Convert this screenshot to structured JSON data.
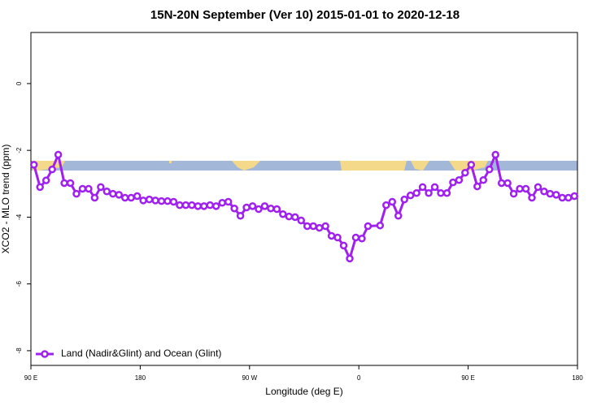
{
  "chart_data": {
    "type": "line",
    "title": "15N-20N September (Ver 10)   2015-01-01 to 2020-12-18",
    "x_label": "Longitude (deg E)",
    "y_label": "XCO2 - MLO trend (ppm)",
    "xlim": [
      90,
      540
    ],
    "ylim": [
      -8.44,
      1.53
    ],
    "xticks": [
      {
        "value": 90,
        "label": "90 E"
      },
      180,
      {
        "value": 270,
        "label": "90 W"
      },
      {
        "value": 360,
        "label": "0"
      },
      {
        "value": 450,
        "label": "90 E"
      },
      {
        "value": 540,
        "label": "180"
      }
    ],
    "yticks": [
      -8,
      -6,
      -4,
      -2,
      0
    ],
    "legend_position": "bottom-left",
    "x": [
      92.5,
      97.5,
      102.5,
      107.5,
      112.5,
      117.5,
      122.5,
      127.5,
      132.5,
      137.5,
      142.5,
      147.5,
      152.5,
      157.5,
      162.5,
      167.5,
      172.5,
      177.5,
      182.5,
      187.5,
      192.5,
      197.5,
      202.5,
      207.5,
      212.5,
      217.5,
      222.5,
      227.5,
      232.5,
      237.5,
      242.5,
      247.5,
      252.5,
      257.5,
      262.5,
      267.5,
      272.5,
      277.5,
      282.5,
      287.5,
      292.5,
      297.5,
      302.5,
      307.5,
      312.5,
      317.5,
      322.5,
      327.5,
      332.5,
      337.5,
      342.5,
      347.5,
      352.5,
      357.5,
      362.5,
      367.5,
      377.5,
      382.5,
      387.5,
      392.5,
      397.5,
      402.5,
      407.5,
      412.5,
      417.5,
      422.5,
      427.5,
      432.5,
      437.5,
      442.5,
      447.5,
      452.5,
      457.5,
      462.5,
      467.5,
      472.5,
      477.5,
      482.5,
      487.5,
      492.5,
      497.5,
      502.5,
      507.5,
      512.5,
      517.5,
      522.5,
      527.5,
      532.5,
      537.5
    ],
    "series": [
      {
        "name": "Land (Nadir&Glint) and Ocean (Glint)",
        "color": "#a020f0",
        "values": [
          -2.43,
          -3.1,
          -2.9,
          -2.57,
          -2.13,
          -2.98,
          -2.98,
          -3.3,
          -3.15,
          -3.15,
          -3.42,
          -3.1,
          -3.23,
          -3.3,
          -3.33,
          -3.42,
          -3.42,
          -3.37,
          -3.5,
          -3.47,
          -3.5,
          -3.52,
          -3.52,
          -3.54,
          -3.64,
          -3.64,
          -3.64,
          -3.67,
          -3.67,
          -3.64,
          -3.67,
          -3.57,
          -3.54,
          -3.74,
          -3.96,
          -3.71,
          -3.67,
          -3.76,
          -3.67,
          -3.74,
          -3.76,
          -3.91,
          -3.98,
          -4.0,
          -4.1,
          -4.27,
          -4.27,
          -4.32,
          -4.27,
          -4.56,
          -4.61,
          -4.85,
          -5.24,
          -4.61,
          -4.64,
          -4.27,
          -4.25,
          -3.64,
          -3.54,
          -3.96,
          -3.47,
          -3.35,
          -3.28,
          -3.1,
          -3.28,
          -3.1,
          -3.28,
          -3.28,
          -2.96,
          -2.89,
          -2.67,
          -2.43,
          -3.08,
          -2.89,
          -2.57,
          -2.13,
          -2.98,
          -2.98,
          -3.3,
          -3.15,
          -3.15,
          -3.42,
          -3.1,
          -3.23,
          -3.3,
          -3.33,
          -3.42,
          -3.42,
          -3.37
        ]
      }
    ]
  }
}
